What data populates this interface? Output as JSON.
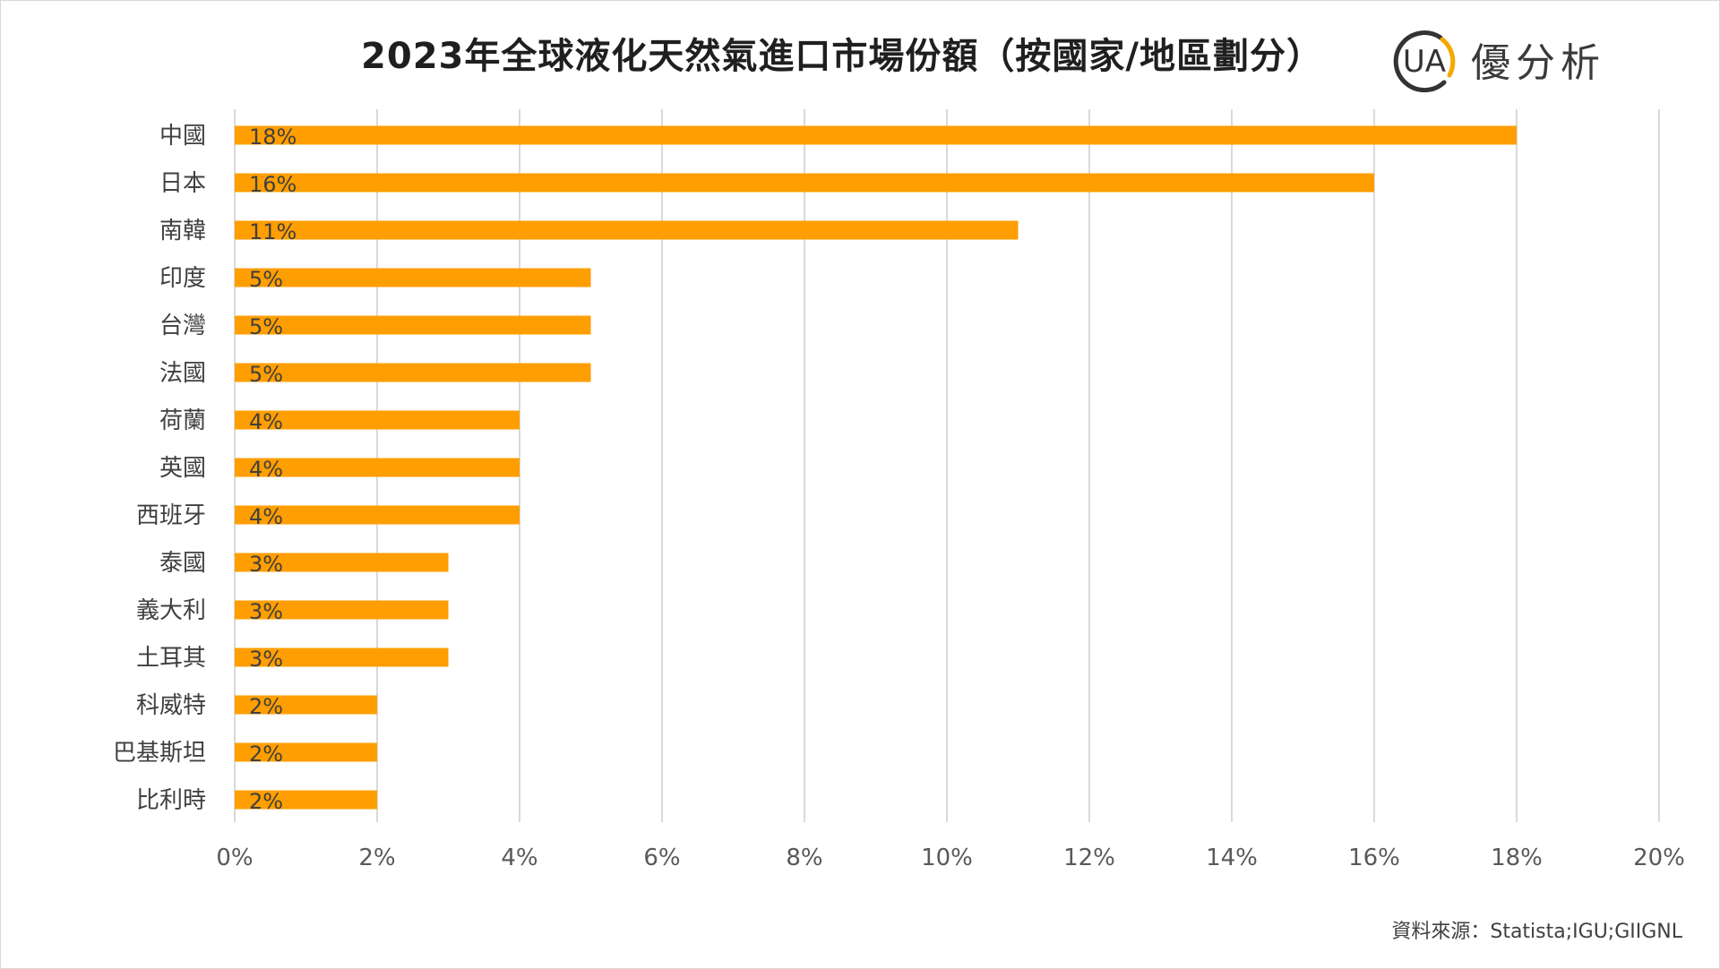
{
  "chart_data": {
    "type": "bar",
    "orientation": "horizontal",
    "title": "2023年全球液化天然氣進口市場份額（按國家/地區劃分）",
    "categories": [
      "中國",
      "日本",
      "南韓",
      "印度",
      "台灣",
      "法國",
      "荷蘭",
      "英國",
      "西班牙",
      "泰國",
      "義大利",
      "土耳其",
      "科威特",
      "巴基斯坦",
      "比利時"
    ],
    "values": [
      18,
      16,
      11,
      5,
      5,
      5,
      4,
      4,
      4,
      3,
      3,
      3,
      2,
      2,
      2
    ],
    "data_labels": [
      "18%",
      "16%",
      "11%",
      "5%",
      "5%",
      "5%",
      "4%",
      "4%",
      "4%",
      "3%",
      "3%",
      "3%",
      "2%",
      "2%",
      "2%"
    ],
    "xlim": [
      0,
      20
    ],
    "x_ticks": [
      0,
      2,
      4,
      6,
      8,
      10,
      12,
      14,
      16,
      18,
      20
    ],
    "x_tick_labels": [
      "0%",
      "2%",
      "4%",
      "6%",
      "8%",
      "10%",
      "12%",
      "14%",
      "16%",
      "18%",
      "20%"
    ],
    "xlabel": "",
    "ylabel": "",
    "grid": "vertical",
    "legend": "none",
    "bar_color": "#FF9E00",
    "grid_color": "#D9D9D9"
  },
  "logo": {
    "text": "優分析",
    "mark": "UA",
    "ring_dark": "#333333",
    "ring_accent": "#F2A900"
  },
  "source": "資料來源：Statista;IGU;GIIGNL"
}
